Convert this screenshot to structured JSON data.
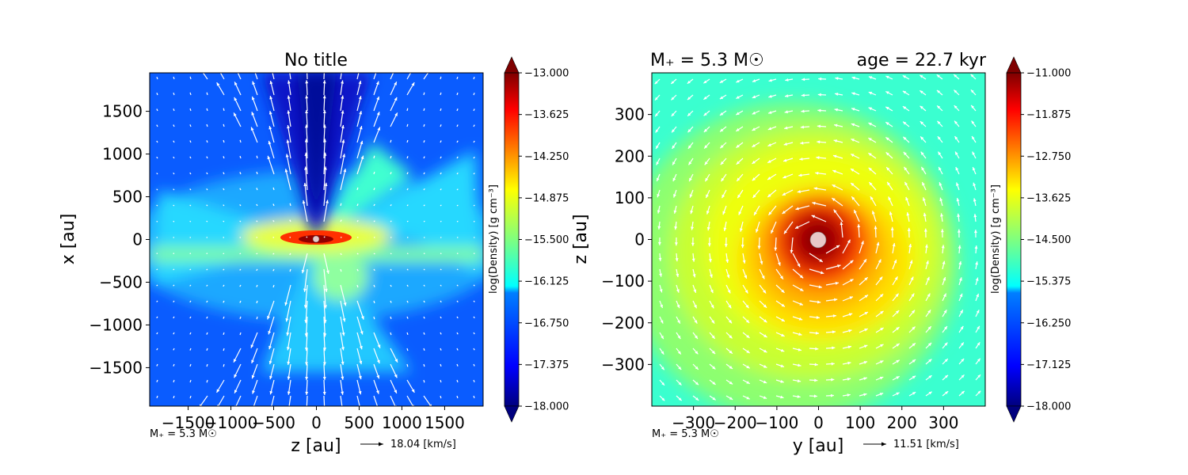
{
  "colors": {
    "cmap": [
      "#00007f",
      "#0000ff",
      "#007fff",
      "#00ffff",
      "#7fff7f",
      "#ffff00",
      "#ff7f00",
      "#ff0000",
      "#7f0000"
    ],
    "arrow": "#ffffff",
    "star": "#e8c8c8"
  },
  "chart_data": [
    {
      "type": "heatmap",
      "title": "No title",
      "xlabel": "z [au]",
      "ylabel": "x [au]",
      "xlim": [
        -1950,
        1950
      ],
      "ylim": [
        -1950,
        1950
      ],
      "xticks": [
        -1500,
        -1000,
        -500,
        0,
        500,
        1000,
        1500
      ],
      "yticks": [
        -1500,
        -1000,
        -500,
        0,
        500,
        1000,
        1500
      ],
      "colorbar": {
        "label": "log(Density) [g cm$^{-3}$]",
        "label_display": "log(Density) [g cm⁻³]",
        "min": -18.0,
        "max": -13.0,
        "extend": "both",
        "ticks": [
          "−13.000",
          "−13.625",
          "−14.250",
          "−14.875",
          "−15.500",
          "−16.125",
          "−16.750",
          "−17.375",
          "−18.000"
        ]
      },
      "field": "Edge-on view: dense flattened disk along z at x≈0 with bipolar low-density outflow cavity along x; outflow velocity arrows",
      "annotation": "M$_*$ = 5.3 M$_\\odot$",
      "annotation_display": "M₊ = 5.3 M☉",
      "velocity_key": "18.04 [km/s]"
    },
    {
      "type": "heatmap",
      "title_left": "M$_*$ = 5.3 M$_\\odot$",
      "title_left_display": "M₊ = 5.3 M☉",
      "title_right": "age = 22.7 kyr",
      "xlabel": "y [au]",
      "ylabel": "z [au]",
      "xlim": [
        -400,
        400
      ],
      "ylim": [
        -400,
        400
      ],
      "xticks": [
        -300,
        -200,
        -100,
        0,
        100,
        200,
        300
      ],
      "yticks": [
        -300,
        -200,
        -100,
        0,
        100,
        200,
        300
      ],
      "colorbar": {
        "label": "log(Density) [g cm$^{-3}$]",
        "label_display": "log(Density) [g cm⁻³]",
        "min": -18.0,
        "max": -11.0,
        "extend": "both",
        "ticks": [
          "−11.000",
          "−11.875",
          "−12.750",
          "−13.625",
          "−14.500",
          "−15.375",
          "−16.250",
          "−17.125",
          "−18.000"
        ]
      },
      "field": "Face-on view: centrally concentrated rotating disk, density peak at origin, counter-clockwise rotating velocity field",
      "annotation": "M$_*$ = 5.3 M$_\\odot$",
      "annotation_display": "M₊ = 5.3 M☉",
      "velocity_key": "11.51 [km/s]"
    }
  ]
}
